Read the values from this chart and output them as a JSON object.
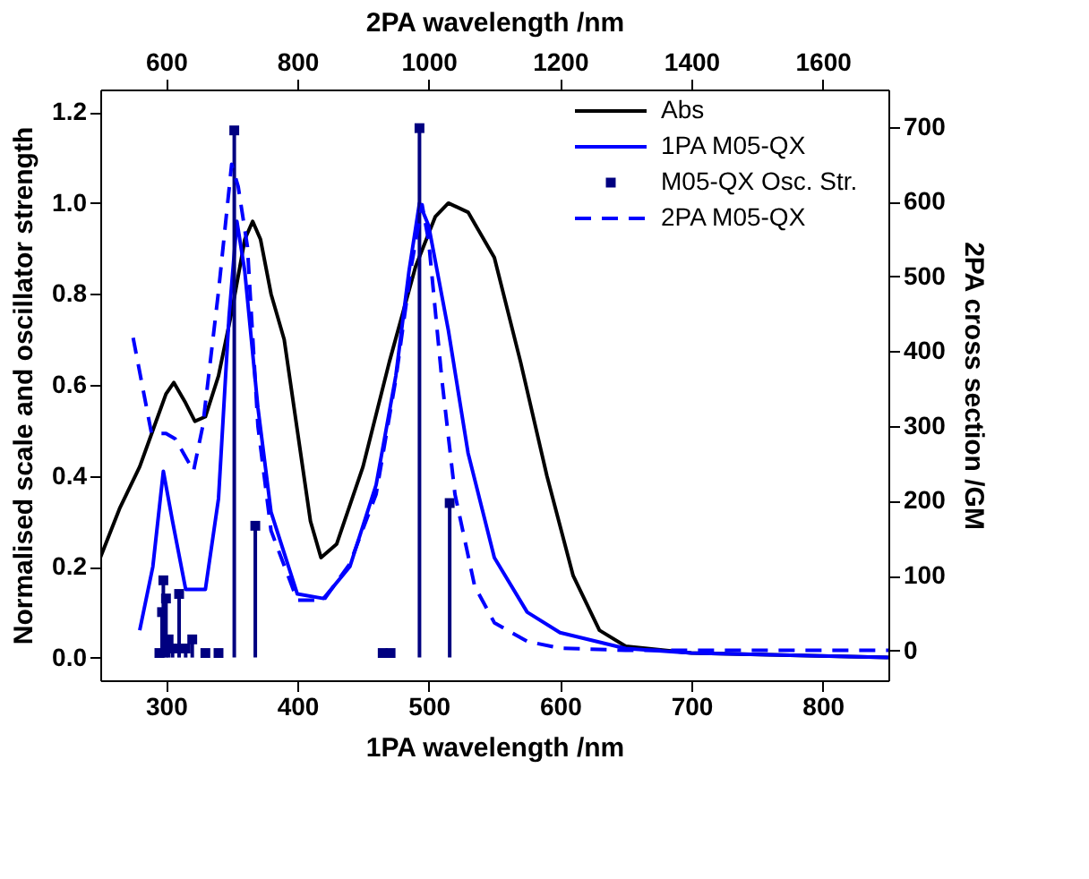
{
  "chart_data": {
    "type": "line",
    "xlabel": "1PA wavelength /nm",
    "ylabel": "Normalised scale and oscillator strength",
    "x2label": "2PA wavelength /nm",
    "y2label": "2PA cross section /GM",
    "xlim": [
      250,
      850
    ],
    "xticks": [
      300,
      400,
      500,
      600,
      700,
      800
    ],
    "x2lim": [
      500,
      1700
    ],
    "x2ticks": [
      600,
      800,
      {
        "value": 1000,
        "label": "1000"
      },
      {
        "value": 1200,
        "label": "1200"
      },
      {
        "value": 1400,
        "label": "1400"
      },
      {
        "value": 1600,
        "label": "1600"
      }
    ],
    "ylim": [
      -0.05,
      1.25
    ],
    "yticks": [
      {
        "value": 0,
        "label": "0.0"
      },
      {
        "value": 0.2,
        "label": "0.2"
      },
      {
        "value": 0.4,
        "label": "0.4"
      },
      {
        "value": 0.6,
        "label": "0.6"
      },
      {
        "value": 0.8,
        "label": "0.8"
      },
      {
        "value": 1,
        "label": "1.0"
      },
      {
        "value": 1.2,
        "label": "1.2"
      }
    ],
    "y2lim": [
      -40,
      750
    ],
    "y2ticks": [
      0,
      100,
      200,
      300,
      400,
      500,
      600,
      700
    ],
    "grid": false,
    "legend": "top right",
    "series": [
      {
        "name": "Abs",
        "color": "#000000",
        "line_style": "solid",
        "x": [
          250,
          265,
          280,
          290,
          300,
          306,
          315,
          322,
          330,
          340,
          350,
          360,
          366,
          372,
          380,
          390,
          400,
          410,
          418,
          430,
          450,
          470,
          490,
          505,
          515,
          530,
          550,
          570,
          590,
          610,
          630,
          650,
          700,
          850
        ],
        "values": [
          0.22,
          0.33,
          0.42,
          0.5,
          0.58,
          0.605,
          0.56,
          0.52,
          0.53,
          0.62,
          0.76,
          0.92,
          0.96,
          0.92,
          0.8,
          0.7,
          0.5,
          0.3,
          0.22,
          0.25,
          0.42,
          0.65,
          0.86,
          0.97,
          1.0,
          0.98,
          0.88,
          0.65,
          0.4,
          0.18,
          0.06,
          0.025,
          0.01,
          0.0
        ]
      },
      {
        "name": "1PA M05-QX",
        "color": "#0000ff",
        "line_style": "solid",
        "x": [
          280,
          290,
          298,
          305,
          315,
          330,
          340,
          348,
          354,
          360,
          370,
          380,
          400,
          420,
          440,
          460,
          475,
          485,
          493,
          500,
          515,
          530,
          550,
          575,
          600,
          650,
          700,
          850
        ],
        "values": [
          0.06,
          0.2,
          0.41,
          0.3,
          0.15,
          0.15,
          0.35,
          0.75,
          0.96,
          0.85,
          0.55,
          0.32,
          0.14,
          0.13,
          0.2,
          0.38,
          0.62,
          0.85,
          1.0,
          0.95,
          0.72,
          0.45,
          0.22,
          0.1,
          0.055,
          0.02,
          0.01,
          0.0
        ]
      },
      {
        "name": "M05-QX Osc. Str.",
        "type": "lollipop",
        "color": "#000080",
        "marker": "square",
        "x": [
          295,
          297,
          298,
          300,
          302,
          305,
          310,
          315,
          320,
          330,
          340,
          352,
          368,
          465,
          471,
          493,
          516
        ],
        "values": [
          0.01,
          0.1,
          0.17,
          0.13,
          0.04,
          0.02,
          0.14,
          0.02,
          0.04,
          0.01,
          0.01,
          1.16,
          0.29,
          0.01,
          0.01,
          1.165,
          0.34
        ]
      },
      {
        "name": "2PA M05-QX",
        "color": "#0000ff",
        "line_style": "dashed",
        "axis": "y2",
        "x": [
          275,
          289,
          300,
          307,
          321,
          328,
          340,
          350,
          355,
          362,
          370,
          380,
          400,
          420,
          440,
          460,
          475,
          487,
          495,
          500,
          510,
          520,
          535,
          550,
          575,
          600,
          650,
          850
        ],
        "values": [
          418,
          290,
          290,
          283,
          240,
          300,
          480,
          650,
          620,
          540,
          300,
          160,
          67,
          67,
          116,
          209,
          363,
          516,
          596,
          547,
          363,
          209,
          86,
          37,
          12,
          3,
          0,
          0
        ]
      }
    ]
  }
}
